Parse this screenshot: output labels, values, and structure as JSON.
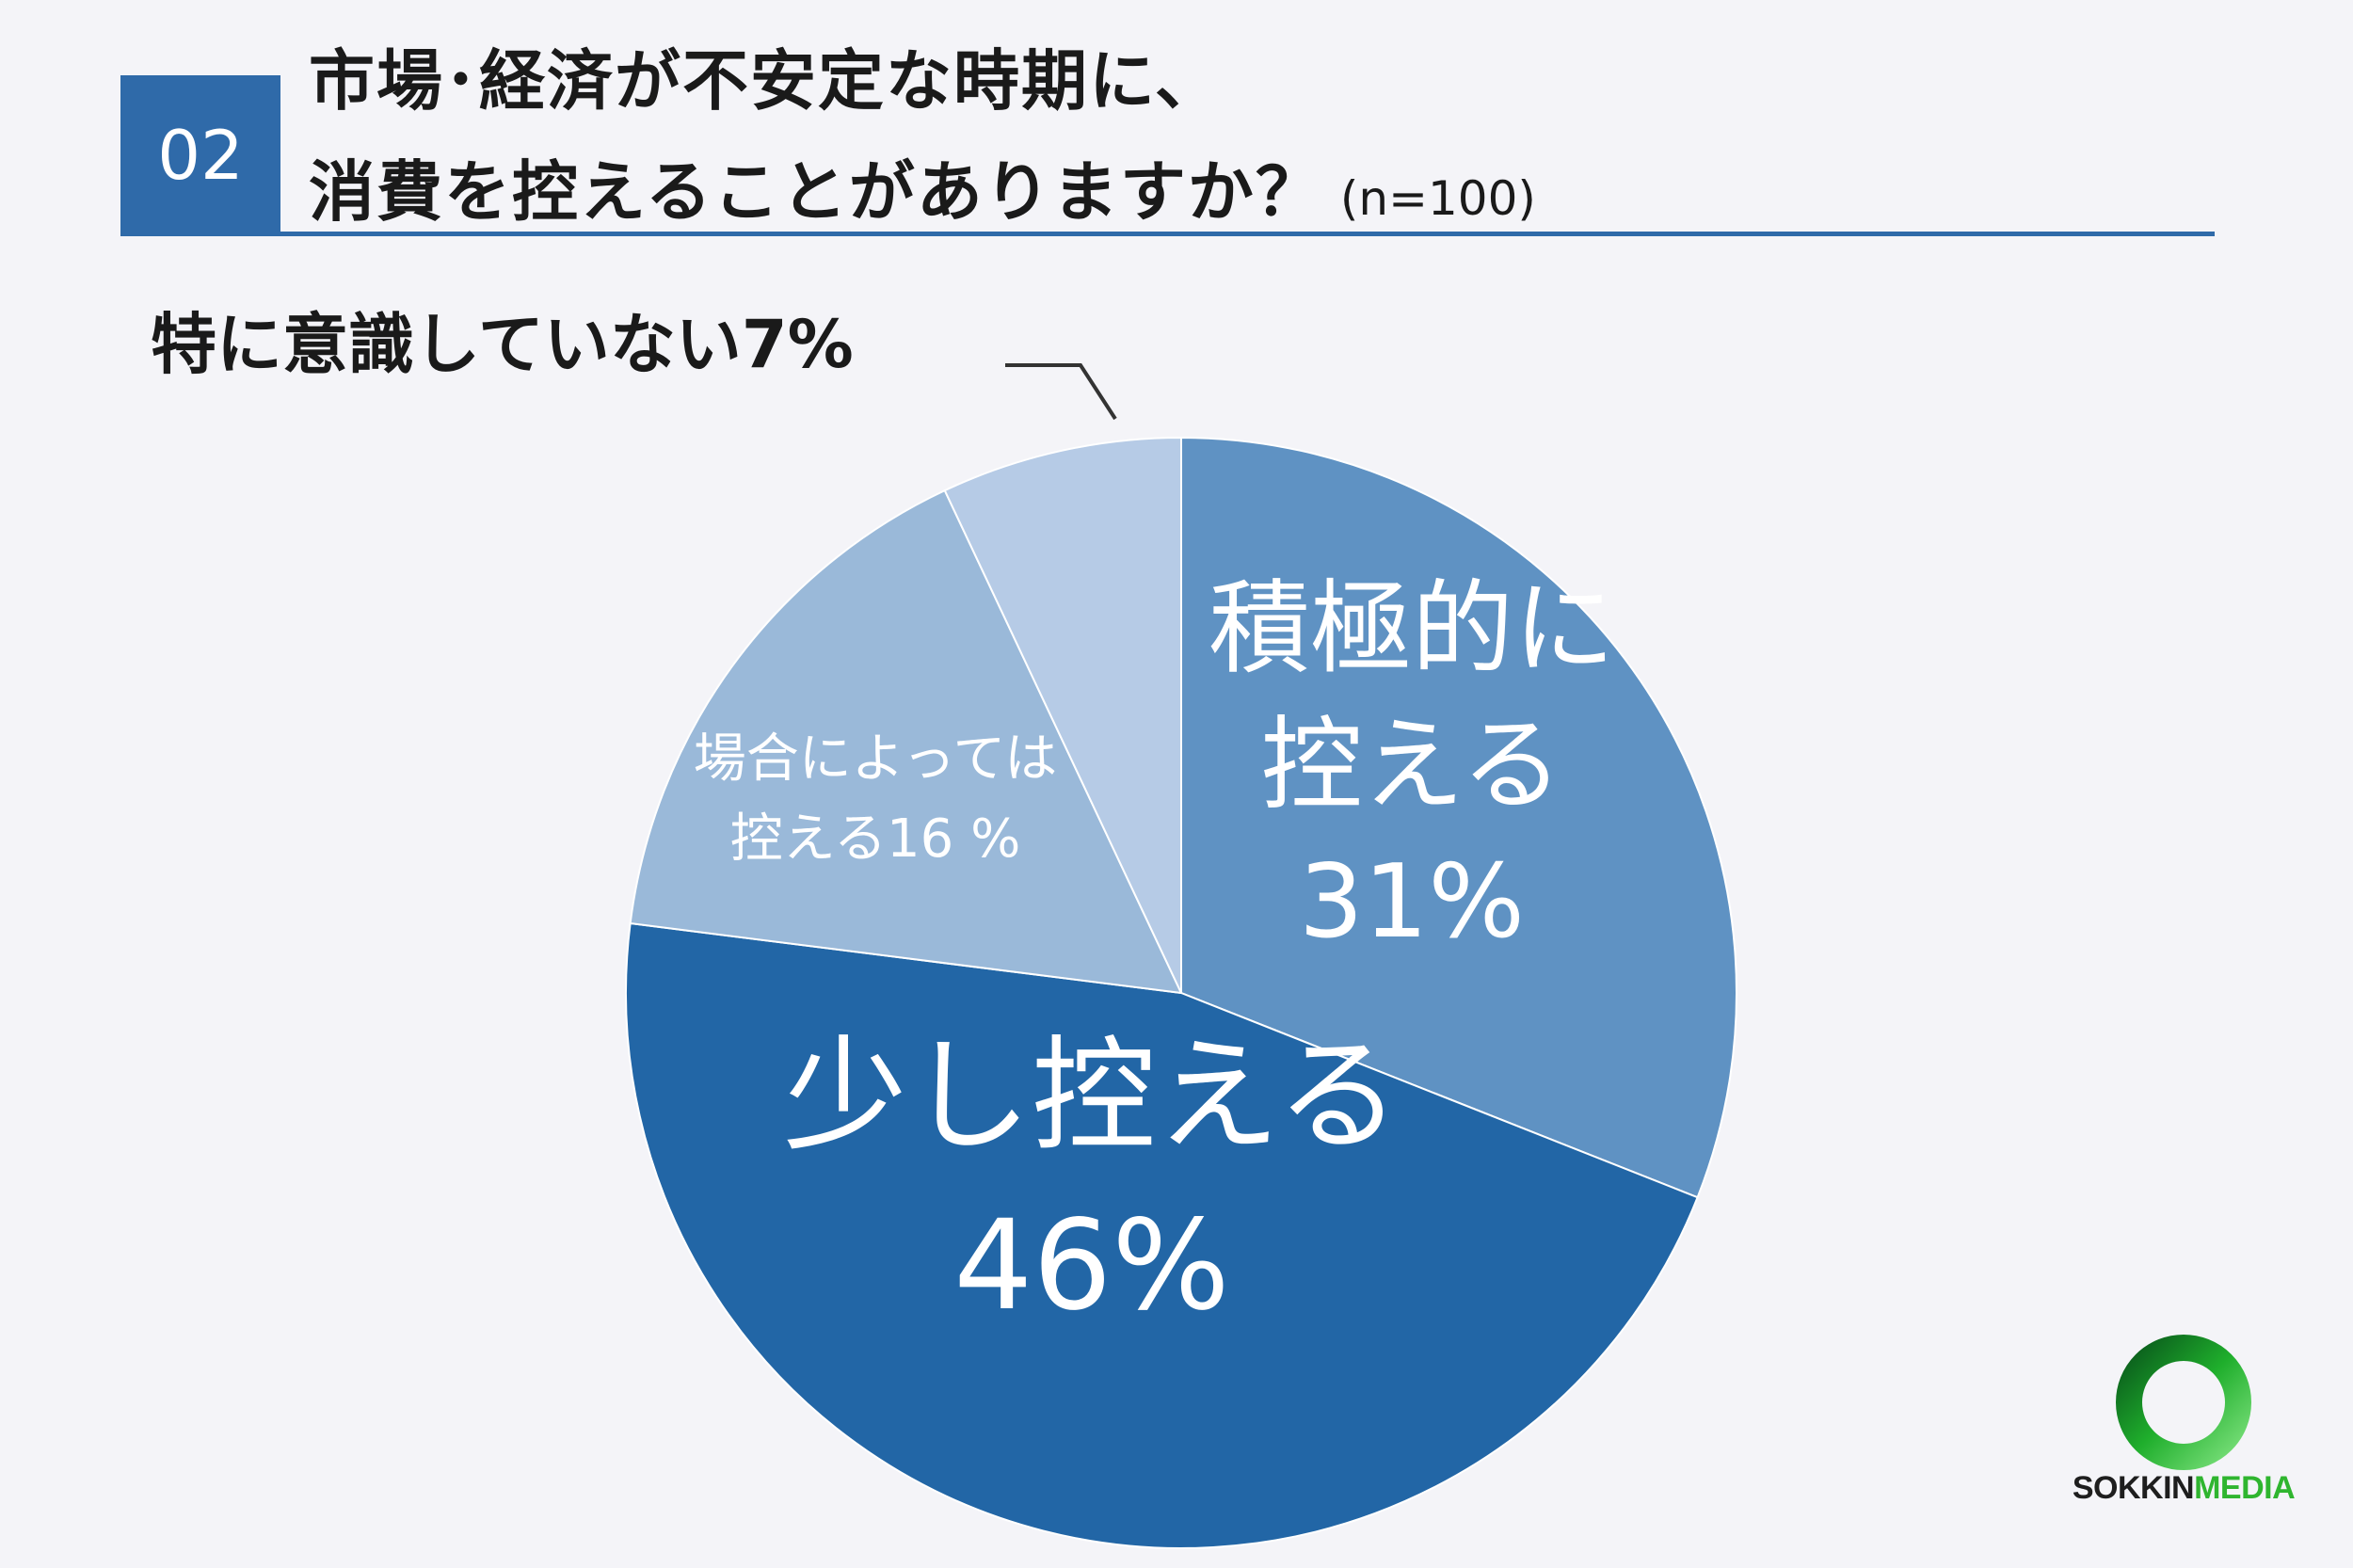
{
  "header": {
    "badge": "02",
    "title_line1": "市場･経済が不安定な時期に、",
    "title_line2": "消費を控えることがありますか？",
    "sample": "(n=100)",
    "accent_color": "#2f6aa9"
  },
  "chart_data": {
    "type": "pie",
    "title": "市場･経済が不安定な時期に、消費を控えることがありますか？",
    "sample_size": "(n=100)",
    "start_angle_deg": 0,
    "direction": "clockwise",
    "slices": [
      {
        "label_lines": [
          "積極的に",
          "控える"
        ],
        "pct_text": "31%",
        "value": 31,
        "color": "#5f92c3",
        "label_color": "#ffffff",
        "label_style": "inside-large"
      },
      {
        "label_lines": [
          "少し控える"
        ],
        "pct_text": "46%",
        "value": 46,
        "color": "#2266a6",
        "label_color": "#ffffff",
        "label_style": "inside-xlarge"
      },
      {
        "label_lines": [
          "場合によっては",
          "控える16 %"
        ],
        "pct_text": "",
        "value": 16,
        "color": "#9ab9d9",
        "label_color": "#ffffff",
        "label_style": "inside-small"
      },
      {
        "label_lines": [
          "特に意識していない7%"
        ],
        "pct_text": "",
        "value": 7,
        "color": "#b6cbe6",
        "label_color": "#1a1a1a",
        "label_style": "outside-leader"
      }
    ]
  },
  "logo": {
    "text_dark": "SOKKIN",
    "text_green": "MEDIA",
    "ring_color": "#1fae2c"
  }
}
